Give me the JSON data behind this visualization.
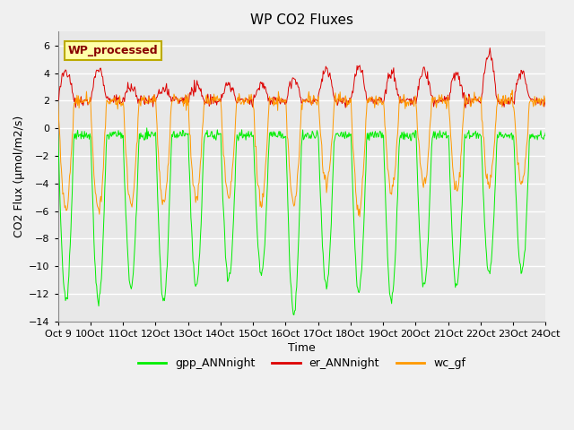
{
  "title": "WP CO2 Fluxes",
  "xlabel": "Time",
  "ylabel": "CO2 Flux (μmol/m2/s)",
  "ylim": [
    -14,
    7
  ],
  "yticks": [
    -14,
    -12,
    -10,
    -8,
    -6,
    -4,
    -2,
    0,
    2,
    4,
    6
  ],
  "n_days": 15,
  "points_per_day": 48,
  "plot_bg_color": "#e8e8e8",
  "fig_bg_color": "#f0f0f0",
  "gpp_color": "#00ee00",
  "er_color": "#dd0000",
  "wc_color": "#ff9900",
  "annotation_text": "WP_processed",
  "annotation_bg": "#ffffaa",
  "annotation_border": "#bbaa00",
  "annotation_text_color": "#880000",
  "legend_labels": [
    "gpp_ANNnight",
    "er_ANNnight",
    "wc_gf"
  ],
  "title_fontsize": 11,
  "axis_label_fontsize": 9,
  "tick_fontsize": 8,
  "legend_fontsize": 9
}
